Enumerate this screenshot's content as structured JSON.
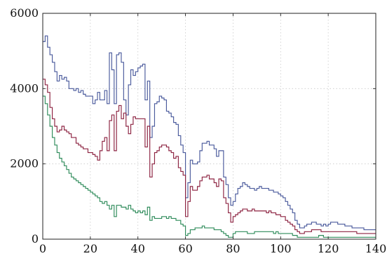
{
  "chart_data": {
    "type": "line",
    "step": true,
    "title": "",
    "xlabel": "",
    "ylabel": "",
    "xlim": [
      0,
      140
    ],
    "ylim": [
      0,
      6000
    ],
    "xticks": [
      0,
      20,
      40,
      60,
      80,
      100,
      120,
      140
    ],
    "yticks": [
      0,
      2000,
      4000,
      6000
    ],
    "grid": true,
    "series": [
      {
        "color": "#4a5a9c",
        "x": [
          0,
          1,
          2,
          3,
          4,
          5,
          6,
          7,
          8,
          9,
          10,
          11,
          12,
          13,
          14,
          15,
          16,
          17,
          18,
          19,
          20,
          21,
          22,
          23,
          24,
          25,
          26,
          27,
          28,
          29,
          30,
          31,
          32,
          33,
          34,
          35,
          36,
          37,
          38,
          39,
          40,
          41,
          42,
          43,
          44,
          45,
          46,
          47,
          48,
          49,
          50,
          51,
          52,
          53,
          54,
          55,
          56,
          57,
          58,
          59,
          60,
          61,
          62,
          63,
          64,
          65,
          66,
          67,
          68,
          69,
          70,
          71,
          72,
          73,
          74,
          75,
          76,
          77,
          78,
          79,
          80,
          81,
          82,
          83,
          84,
          85,
          86,
          87,
          88,
          89,
          90,
          91,
          92,
          93,
          94,
          95,
          96,
          97,
          98,
          99,
          100,
          101,
          102,
          103,
          104,
          105,
          106,
          107,
          108,
          109,
          110,
          111,
          112,
          113,
          114,
          115,
          116,
          117,
          118,
          119,
          120,
          121,
          122,
          123,
          124,
          125,
          126,
          127,
          128,
          129,
          130,
          131,
          132,
          133,
          134,
          135,
          136,
          137,
          138,
          139
        ],
        "y": [
          5250,
          5400,
          5100,
          4900,
          4700,
          4450,
          4200,
          4350,
          4250,
          4300,
          4200,
          4000,
          4000,
          3950,
          4000,
          3900,
          3950,
          3850,
          3800,
          3800,
          3800,
          3600,
          3700,
          3900,
          3700,
          3700,
          3950,
          3600,
          4950,
          4500,
          3600,
          4900,
          4950,
          4700,
          3700,
          3300,
          4100,
          4500,
          4350,
          4450,
          4550,
          4600,
          4650,
          3700,
          4200,
          2700,
          3000,
          3600,
          3650,
          3800,
          3750,
          3700,
          3400,
          3350,
          3250,
          3100,
          3050,
          2750,
          2500,
          2300,
          1100,
          1500,
          2100,
          2000,
          2000,
          2050,
          2350,
          2550,
          2550,
          2600,
          2500,
          2500,
          2400,
          2200,
          2350,
          2350,
          1650,
          1450,
          1100,
          900,
          1000,
          1200,
          1350,
          1400,
          1500,
          1450,
          1400,
          1350,
          1350,
          1300,
          1350,
          1400,
          1350,
          1350,
          1350,
          1300,
          1300,
          1250,
          1250,
          1200,
          1150,
          1100,
          1000,
          900,
          800,
          700,
          500,
          400,
          300,
          300,
          350,
          400,
          400,
          450,
          450,
          400,
          400,
          350,
          400,
          350,
          400,
          450,
          450,
          450,
          400,
          400,
          400,
          350,
          350,
          350,
          300,
          300,
          300,
          300,
          300,
          250,
          250,
          250,
          250,
          250
        ]
      },
      {
        "color": "#8c2240",
        "x": [
          0,
          1,
          2,
          3,
          4,
          5,
          6,
          7,
          8,
          9,
          10,
          11,
          12,
          13,
          14,
          15,
          16,
          17,
          18,
          19,
          20,
          21,
          22,
          23,
          24,
          25,
          26,
          27,
          28,
          29,
          30,
          31,
          32,
          33,
          34,
          35,
          36,
          37,
          38,
          39,
          40,
          41,
          42,
          43,
          44,
          45,
          46,
          47,
          48,
          49,
          50,
          51,
          52,
          53,
          54,
          55,
          56,
          57,
          58,
          59,
          60,
          61,
          62,
          63,
          64,
          65,
          66,
          67,
          68,
          69,
          70,
          71,
          72,
          73,
          74,
          75,
          76,
          77,
          78,
          79,
          80,
          81,
          82,
          83,
          84,
          85,
          86,
          87,
          88,
          89,
          90,
          91,
          92,
          93,
          94,
          95,
          96,
          97,
          98,
          99,
          100,
          101,
          102,
          103,
          104,
          105,
          106,
          107,
          108,
          109,
          110,
          111,
          112,
          113,
          114,
          115,
          116,
          117,
          118,
          119,
          120,
          121,
          122,
          123,
          124,
          125,
          126,
          127,
          128,
          129,
          130,
          131,
          132,
          133,
          134,
          135,
          136,
          137,
          138,
          139
        ],
        "y": [
          4250,
          4100,
          3900,
          3500,
          3200,
          3000,
          2850,
          2900,
          3000,
          2900,
          2850,
          2800,
          2700,
          2700,
          2550,
          2500,
          2450,
          2400,
          2400,
          2300,
          2300,
          2250,
          2200,
          2100,
          2350,
          2600,
          2700,
          2350,
          3150,
          3300,
          2350,
          3400,
          3550,
          3200,
          3350,
          3000,
          2800,
          3050,
          3250,
          3200,
          3200,
          3200,
          3200,
          2450,
          3000,
          1650,
          2000,
          2300,
          2350,
          2450,
          2500,
          2500,
          2450,
          2350,
          2300,
          2150,
          2200,
          1900,
          1800,
          1700,
          600,
          1000,
          1400,
          1300,
          1300,
          1400,
          1550,
          1650,
          1650,
          1700,
          1600,
          1600,
          1500,
          1400,
          1600,
          1550,
          1100,
          950,
          700,
          450,
          600,
          650,
          700,
          750,
          800,
          800,
          750,
          750,
          800,
          750,
          750,
          750,
          750,
          750,
          700,
          750,
          700,
          700,
          650,
          650,
          600,
          600,
          500,
          450,
          400,
          350,
          250,
          200,
          150,
          150,
          200,
          200,
          200,
          250,
          250,
          250,
          250,
          200,
          200,
          200,
          200,
          200,
          200,
          200,
          200,
          200,
          200,
          200,
          200,
          200,
          200,
          200,
          150,
          150,
          150,
          150,
          150,
          150,
          150,
          150
        ]
      },
      {
        "color": "#2e8b5a",
        "x": [
          0,
          1,
          2,
          3,
          4,
          5,
          6,
          7,
          8,
          9,
          10,
          11,
          12,
          13,
          14,
          15,
          16,
          17,
          18,
          19,
          20,
          21,
          22,
          23,
          24,
          25,
          26,
          27,
          28,
          29,
          30,
          31,
          32,
          33,
          34,
          35,
          36,
          37,
          38,
          39,
          40,
          41,
          42,
          43,
          44,
          45,
          46,
          47,
          48,
          49,
          50,
          51,
          52,
          53,
          54,
          55,
          56,
          57,
          58,
          59,
          60,
          61,
          62,
          63,
          64,
          65,
          66,
          67,
          68,
          69,
          70,
          71,
          72,
          73,
          74,
          75,
          76,
          77,
          78,
          79,
          80,
          81,
          82,
          83,
          84,
          85,
          86,
          87,
          88,
          89,
          90,
          91,
          92,
          93,
          94,
          95,
          96,
          97,
          98,
          99,
          100,
          101,
          102,
          103,
          104,
          105,
          106,
          107,
          108,
          109,
          110,
          111,
          112,
          113,
          114,
          115,
          116,
          117,
          118,
          119,
          120,
          121,
          122,
          123,
          124,
          125,
          126,
          127,
          128,
          129,
          130,
          131,
          132,
          133,
          134,
          135,
          136,
          137,
          138,
          139
        ],
        "y": [
          3800,
          3600,
          3300,
          3000,
          2700,
          2500,
          2300,
          2150,
          2050,
          1950,
          1850,
          1750,
          1650,
          1600,
          1550,
          1500,
          1450,
          1400,
          1350,
          1300,
          1250,
          1200,
          1150,
          1100,
          1000,
          950,
          1000,
          900,
          800,
          900,
          600,
          900,
          900,
          850,
          850,
          800,
          900,
          800,
          750,
          700,
          750,
          700,
          750,
          650,
          850,
          500,
          600,
          550,
          550,
          550,
          600,
          600,
          550,
          600,
          550,
          550,
          500,
          500,
          400,
          350,
          100,
          150,
          250,
          250,
          300,
          300,
          300,
          350,
          300,
          300,
          300,
          300,
          250,
          250,
          250,
          200,
          150,
          100,
          50,
          50,
          150,
          200,
          200,
          200,
          200,
          200,
          150,
          150,
          150,
          200,
          200,
          200,
          200,
          200,
          200,
          200,
          200,
          150,
          200,
          150,
          150,
          150,
          150,
          150,
          150,
          100,
          100,
          50,
          50,
          50,
          50,
          50,
          50,
          50,
          50,
          50,
          100,
          100,
          50,
          50,
          50,
          50,
          50,
          50,
          50,
          50,
          50,
          50,
          50,
          50,
          50,
          50,
          50,
          50,
          50,
          50,
          50,
          50,
          50,
          50
        ]
      }
    ]
  }
}
